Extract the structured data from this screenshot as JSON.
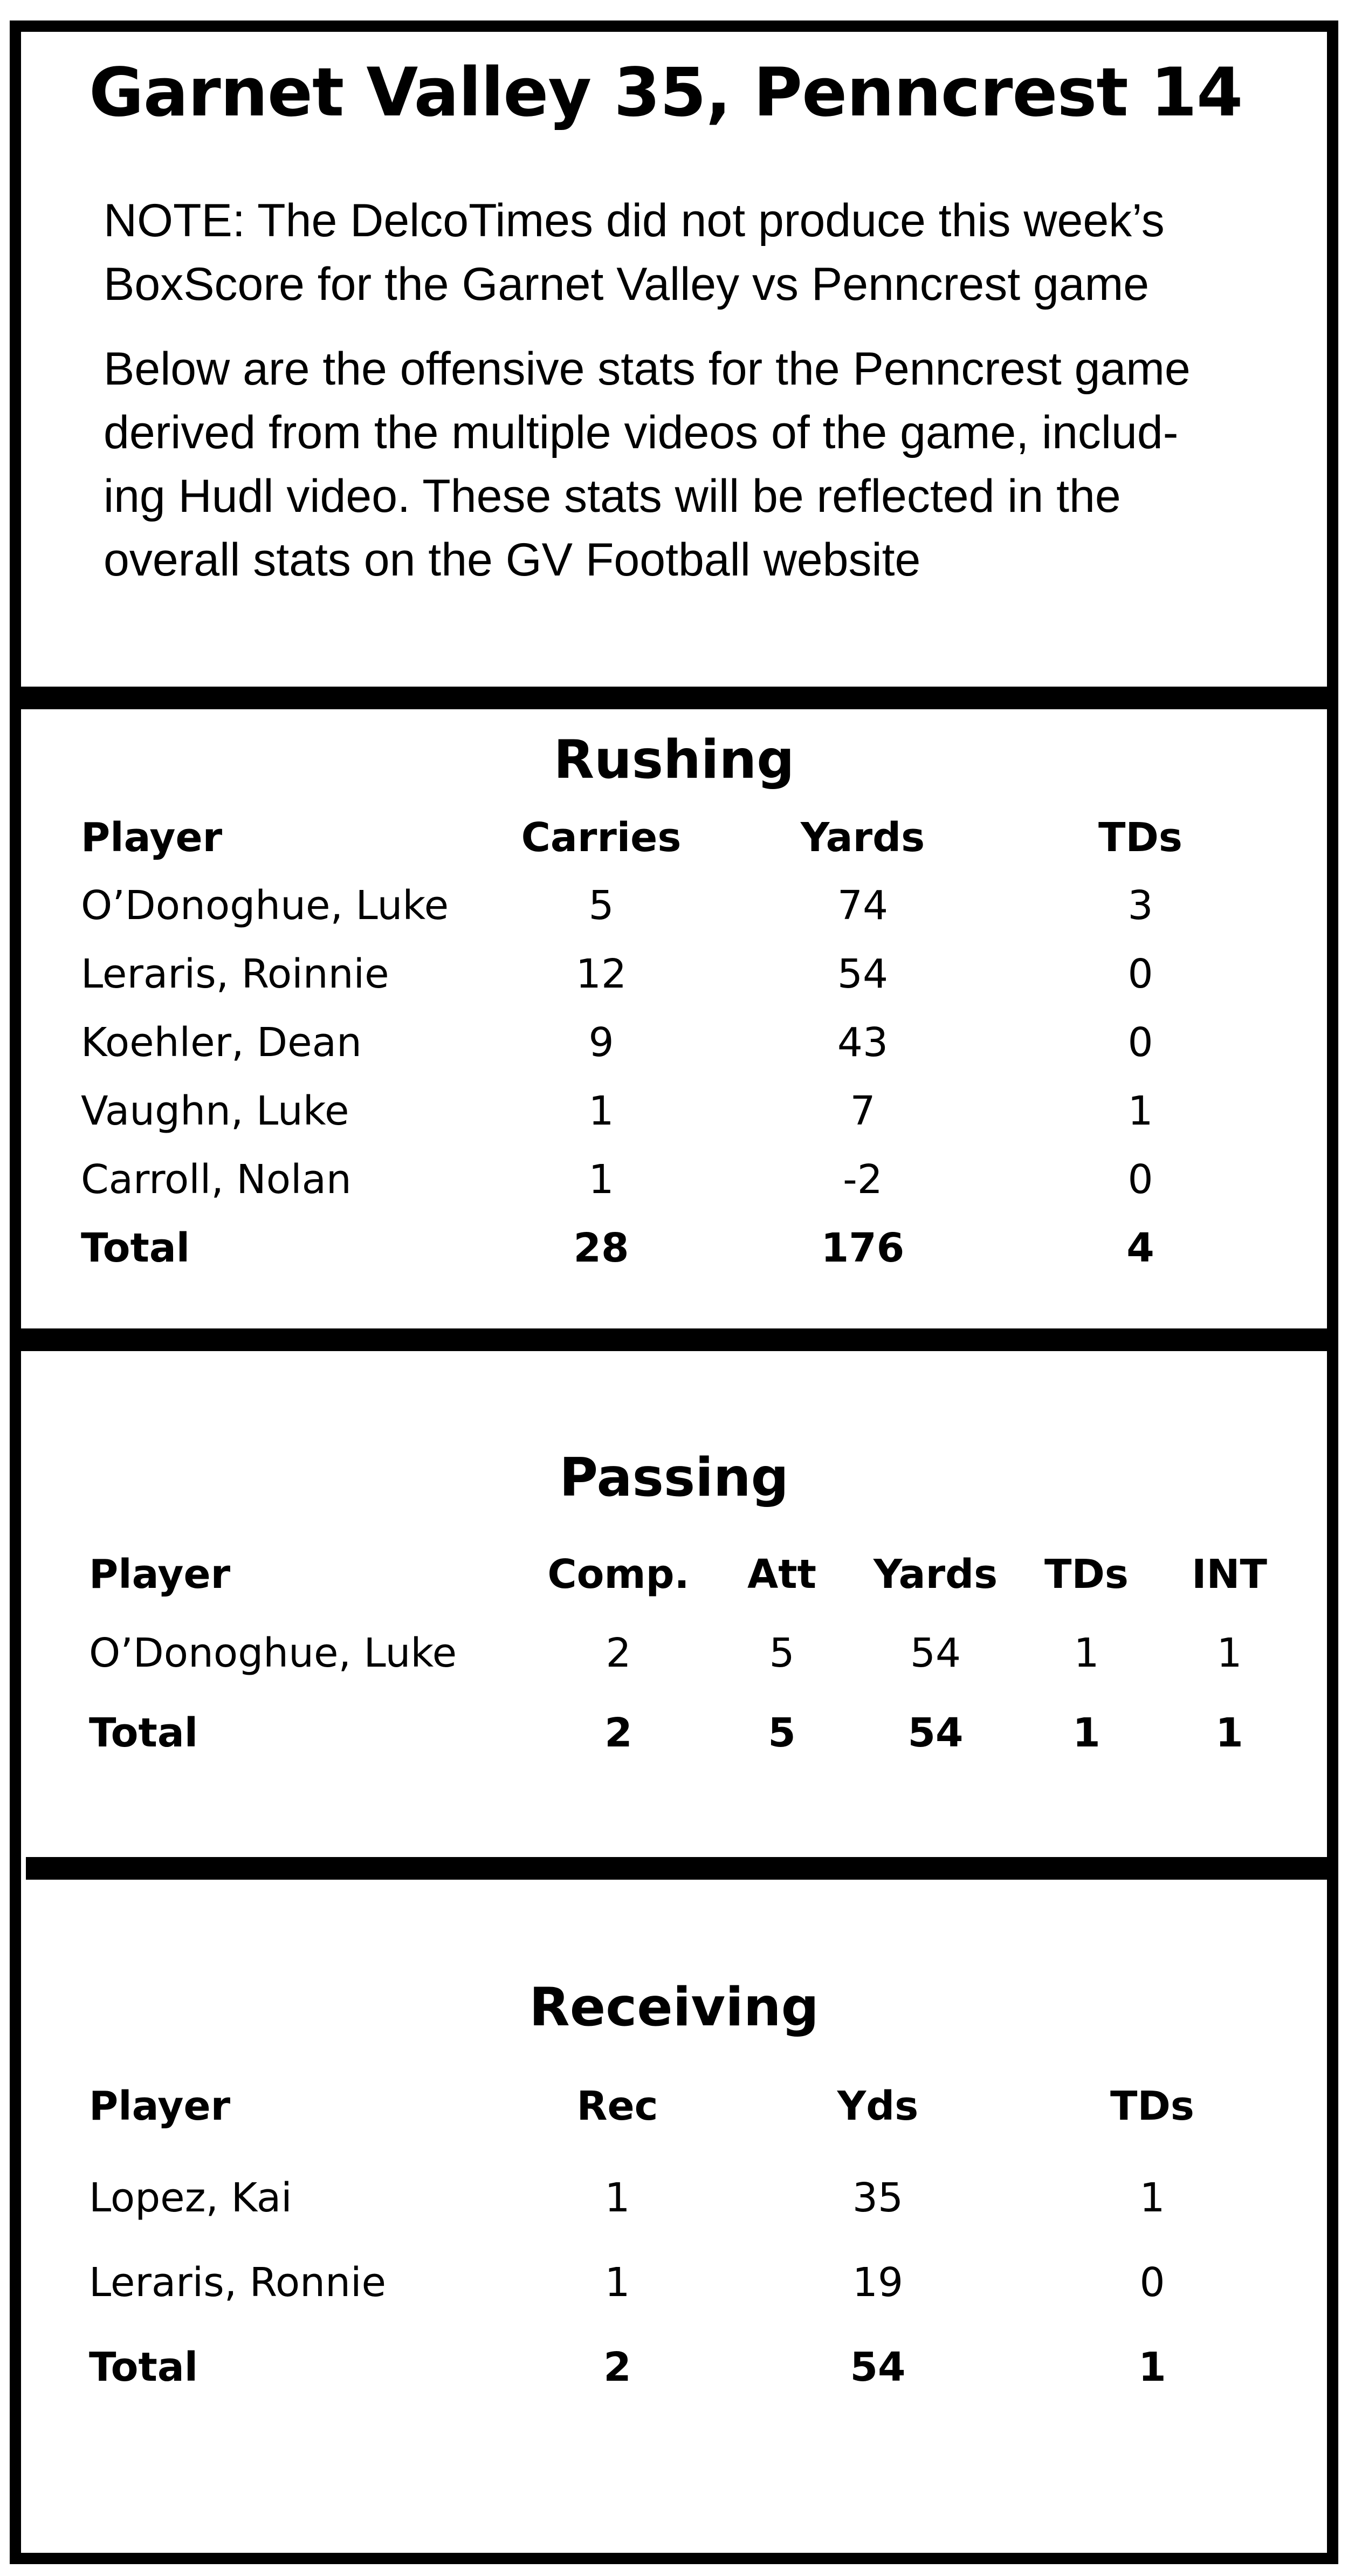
{
  "title": "Garnet Valley 35, Penncrest 14",
  "note_lines": [
    "NOTE:  The DelcoTimes did not produce this week’s",
    "BoxScore for the Garnet Valley vs Penncrest game"
  ],
  "body_lines": [
    "Below are the offensive stats for the Penncrest game",
    "derived from the multiple videos of the game, includ-",
    "ing Hudl video.  These stats will be reflected in the",
    "overall stats on the GV Football website"
  ],
  "rushing": {
    "title": "Rushing",
    "headers": [
      "Player",
      "Carries",
      "Yards",
      "TDs"
    ],
    "rows": [
      [
        "O’Donoghue, Luke",
        "5",
        "74",
        "3"
      ],
      [
        "Leraris, Roinnie",
        "12",
        "54",
        "0"
      ],
      [
        "Koehler, Dean",
        "9",
        "43",
        "0"
      ],
      [
        "Vaughn, Luke",
        "1",
        "7",
        "1"
      ],
      [
        "Carroll, Nolan",
        "1",
        "-2",
        "0"
      ]
    ],
    "total": [
      "Total",
      "28",
      "176",
      "4"
    ]
  },
  "passing": {
    "title": "Passing",
    "headers": [
      "Player",
      "Comp.",
      "Att",
      "Yards",
      "TDs",
      "INT"
    ],
    "rows": [
      [
        "O’Donoghue, Luke",
        "2",
        "5",
        "54",
        "1",
        "1"
      ]
    ],
    "total": [
      "Total",
      "2",
      "5",
      "54",
      "1",
      "1"
    ]
  },
  "receiving": {
    "title": "Receiving",
    "headers": [
      "Player",
      "Rec",
      "Yds",
      "TDs"
    ],
    "rows": [
      [
        "Lopez, Kai",
        "1",
        "35",
        "1"
      ],
      [
        "Leraris, Ronnie",
        "1",
        "19",
        "0"
      ]
    ],
    "total": [
      "Total",
      "2",
      "54",
      "1"
    ]
  }
}
